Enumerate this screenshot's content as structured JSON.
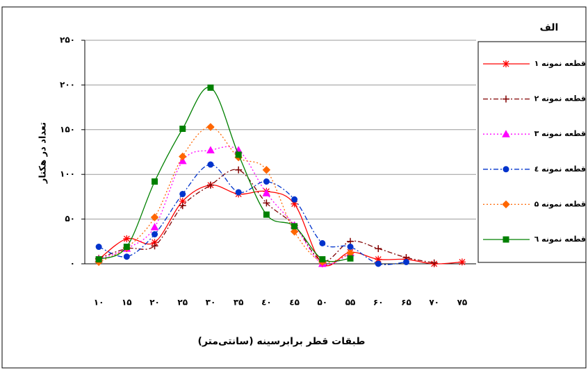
{
  "chart_data": {
    "type": "line",
    "title": "الف",
    "x_label": "طبقات قطر برابرسینه (سانتی‌متر)",
    "y_label": "تعداد در هکتار",
    "categories": [
      "۱۰",
      "۱۵",
      "۲۰",
      "۲۵",
      "۳۰",
      "۳۵",
      "٤۰",
      "٤۵",
      "۵۰",
      "۵۵",
      "۶۰",
      "۶۵",
      "۷۰",
      "۷۵"
    ],
    "ylim": [
      0,
      250
    ],
    "yticks": [
      {
        "value": 0,
        "label": "۰"
      },
      {
        "value": 50,
        "label": "۵۰"
      },
      {
        "value": 100,
        "label": "۱۰۰"
      },
      {
        "value": 150,
        "label": "۱۵۰"
      },
      {
        "value": 200,
        "label": "۲۰۰"
      },
      {
        "value": 250,
        "label": "۲۵۰"
      }
    ],
    "grid": true,
    "legend": "right",
    "series": [
      {
        "name": "قطعه نمونه ۱",
        "color": "#ff0000",
        "marker": "star",
        "dash": "solid",
        "values": [
          5,
          28,
          24,
          70,
          88,
          78,
          81,
          67,
          0,
          13,
          5,
          5,
          0,
          2
        ]
      },
      {
        "name": "قطعه نمونه ۲",
        "color": "#800000",
        "marker": "plus",
        "dash": "dashdot",
        "values": [
          6,
          17,
          20,
          65,
          88,
          105,
          68,
          43,
          3,
          25,
          17,
          7,
          1,
          null
        ]
      },
      {
        "name": "قطعه نمونه ۳",
        "color": "#ff00ff",
        "marker": "triangle",
        "dash": "dot",
        "values": [
          5,
          17,
          41,
          115,
          127,
          127,
          79,
          43,
          0,
          12,
          null,
          null,
          null,
          null
        ]
      },
      {
        "name": "قطعه نمونه ٤",
        "color": "#0033cc",
        "marker": "circle",
        "dash": "dashdot",
        "values": [
          19,
          8,
          33,
          78,
          111,
          80,
          92,
          72,
          23,
          19,
          0,
          2,
          null,
          null
        ]
      },
      {
        "name": "قطعه نمونه ۵",
        "color": "#ff6600",
        "marker": "diamond",
        "dash": "dot",
        "values": [
          2,
          18,
          52,
          120,
          153,
          119,
          105,
          36,
          2,
          12,
          null,
          null,
          null,
          null
        ]
      },
      {
        "name": "قطعه نمونه ٦",
        "color": "#008000",
        "marker": "square",
        "dash": "solid",
        "values": [
          5,
          19,
          92,
          151,
          197,
          122,
          55,
          42,
          5,
          6,
          null,
          null,
          null,
          null
        ]
      }
    ]
  }
}
